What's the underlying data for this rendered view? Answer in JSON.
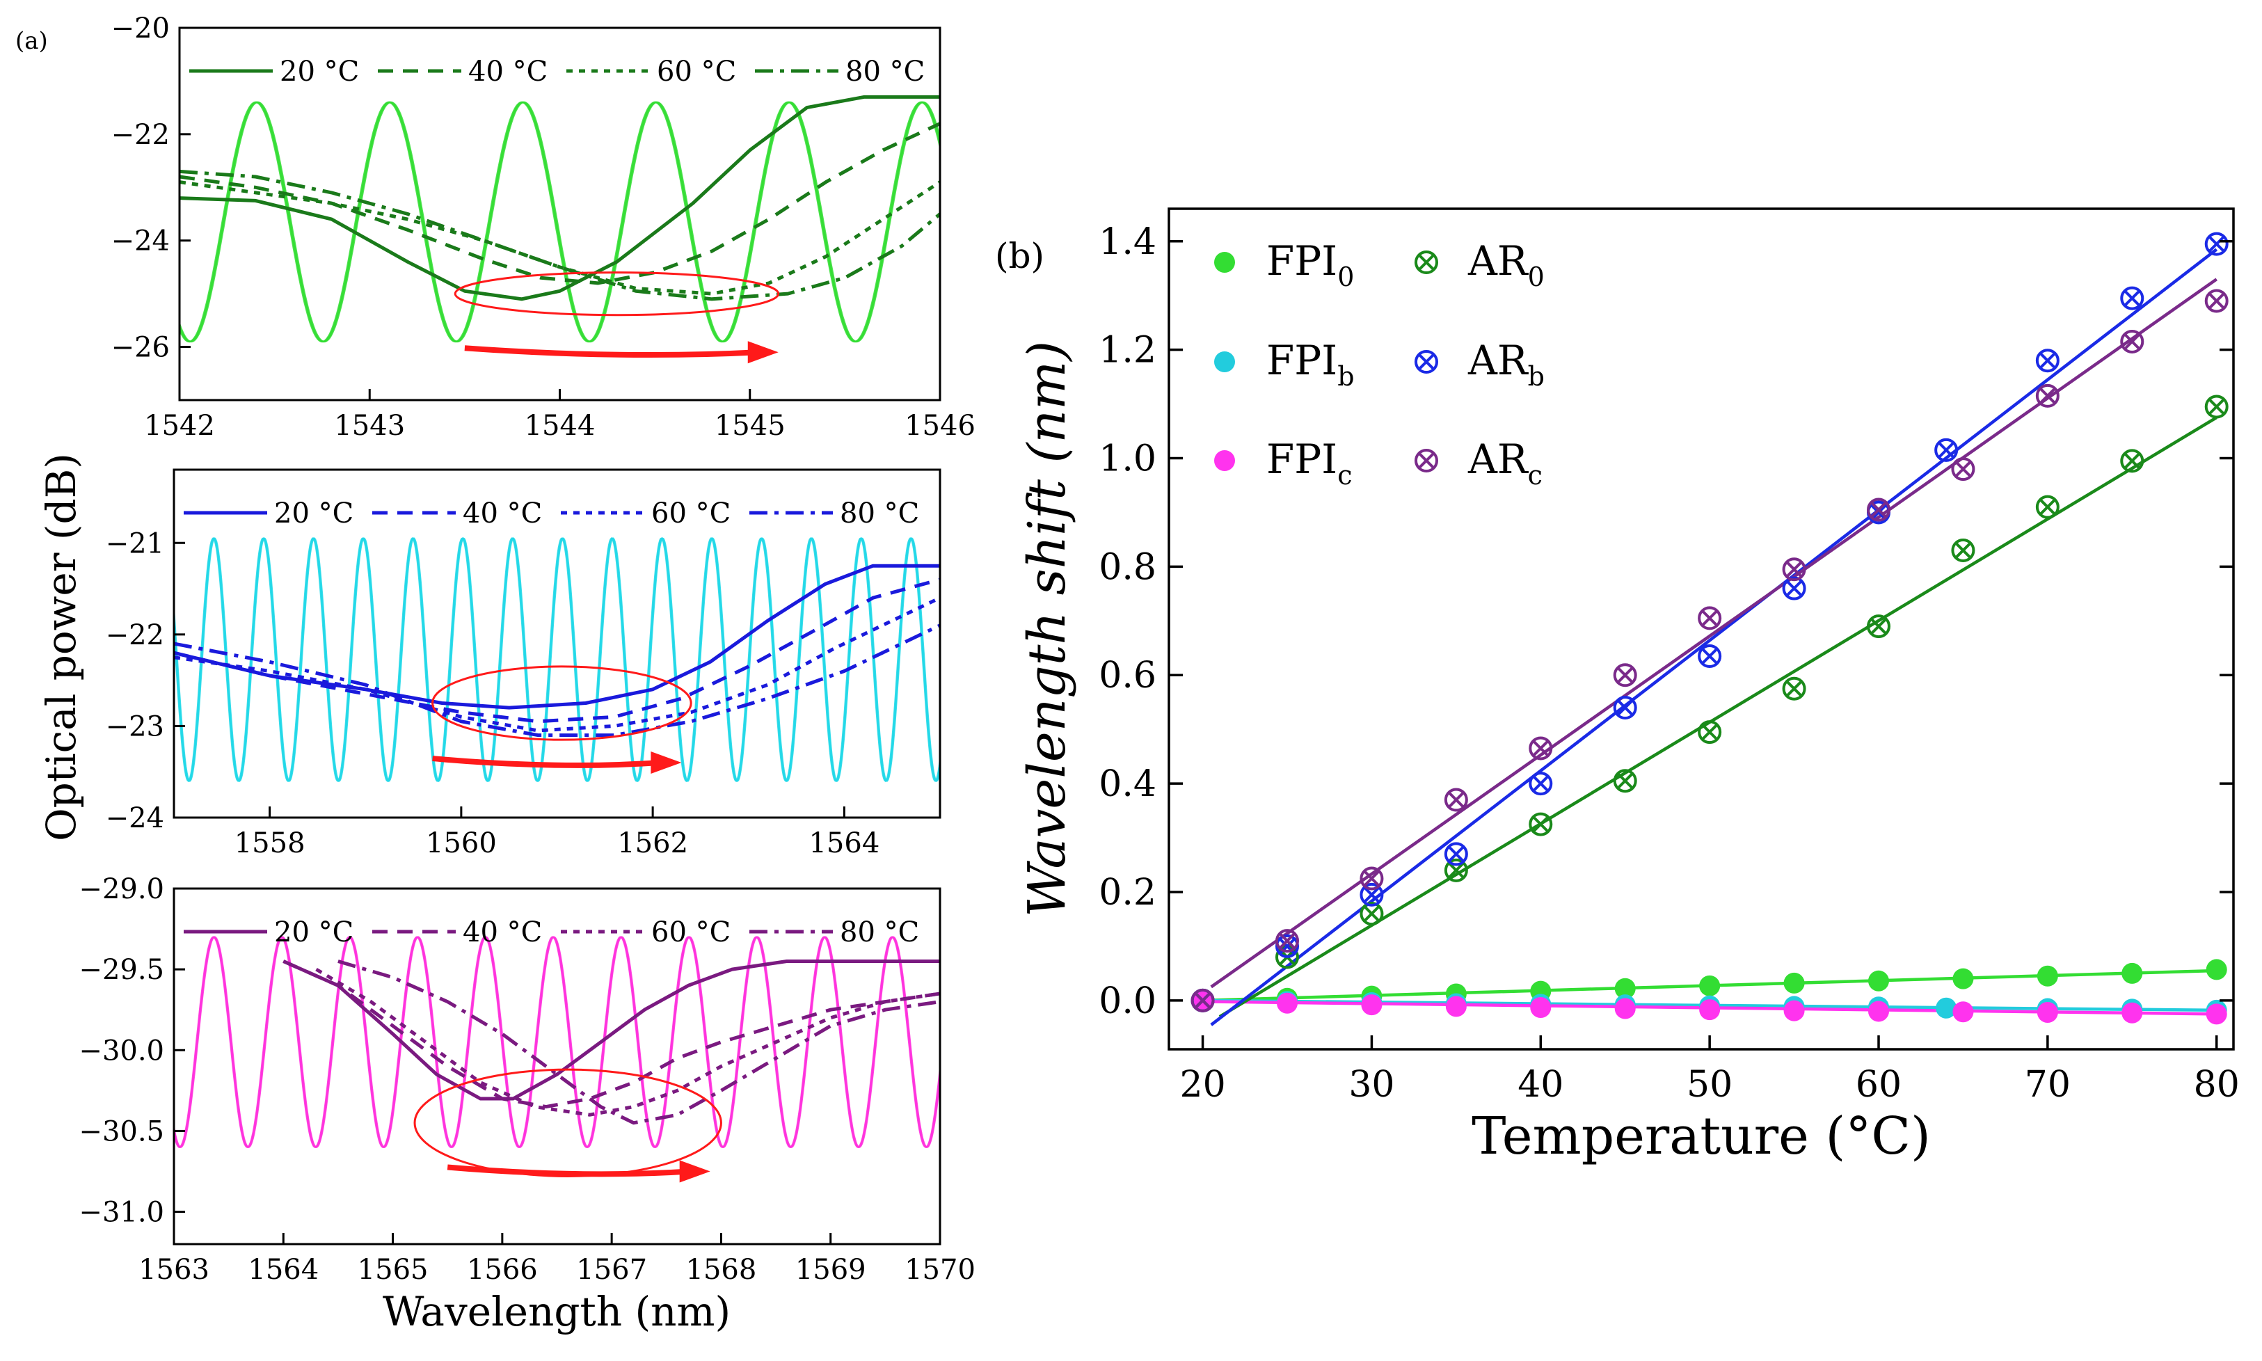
{
  "chart_data": [
    {
      "panel_label": "(a)",
      "type": "line",
      "legend": [
        "20 °C",
        "40 °C",
        "60 °C",
        "80 °C"
      ],
      "xlim": [
        1542,
        1546
      ],
      "ylim": [
        -27,
        -20
      ],
      "xticks": [
        1542,
        1543,
        1544,
        1545,
        1546
      ],
      "yticks": [
        -20,
        -22,
        -24,
        -26
      ],
      "colors": {
        "fpi": "#33dd33",
        "ar": "#1a7a1a"
      },
      "fpi": {
        "period": 0.7,
        "phase": 1542.05,
        "max": -21.4,
        "min": -25.9,
        "shift_per_step": 0.004
      },
      "ar_series": [
        {
          "name": "20 °C",
          "x": [
            1542,
            1542.4,
            1542.8,
            1543.2,
            1543.5,
            1543.8,
            1544.0,
            1544.3,
            1544.7,
            1545.0,
            1545.3,
            1545.6,
            1546
          ],
          "y": [
            -23.2,
            -23.25,
            -23.6,
            -24.4,
            -24.95,
            -25.1,
            -24.95,
            -24.4,
            -23.3,
            -22.3,
            -21.5,
            -21.3,
            -21.3
          ]
        },
        {
          "name": "40 °C",
          "x": [
            1542,
            1542.4,
            1542.8,
            1543.2,
            1543.6,
            1543.9,
            1544.2,
            1544.5,
            1544.8,
            1545.1,
            1545.4,
            1545.7,
            1546
          ],
          "y": [
            -22.8,
            -23.0,
            -23.3,
            -23.8,
            -24.35,
            -24.7,
            -24.8,
            -24.6,
            -24.2,
            -23.6,
            -22.9,
            -22.3,
            -21.8
          ]
        },
        {
          "name": "60 °C",
          "x": [
            1542,
            1542.4,
            1542.8,
            1543.2,
            1543.6,
            1544.0,
            1544.4,
            1544.8,
            1545.1,
            1545.4,
            1545.7,
            1546
          ],
          "y": [
            -22.9,
            -23.1,
            -23.3,
            -23.6,
            -24.0,
            -24.5,
            -24.9,
            -25.0,
            -24.8,
            -24.3,
            -23.6,
            -22.9
          ]
        },
        {
          "name": "80 °C",
          "x": [
            1542,
            1542.4,
            1542.8,
            1543.2,
            1543.6,
            1544.0,
            1544.4,
            1544.8,
            1545.2,
            1545.5,
            1545.8,
            1546
          ],
          "y": [
            -22.7,
            -22.8,
            -23.1,
            -23.5,
            -24.0,
            -24.5,
            -24.95,
            -25.1,
            -25.0,
            -24.7,
            -24.1,
            -23.5
          ]
        }
      ],
      "highlight_ellipse": {
        "x": 1544.3,
        "y": -25.0,
        "rx": 0.85,
        "ry": 0.4
      },
      "arrow": {
        "x1": 1543.5,
        "x2": 1545.15,
        "y": -26.1
      }
    },
    {
      "type": "line",
      "legend": [
        "20 °C",
        "40 °C",
        "60 °C",
        "80 °C"
      ],
      "ylabel": "Optical power (dB)",
      "xlim": [
        1557,
        1565
      ],
      "ylim": [
        -24,
        -20.2
      ],
      "xticks": [
        1558,
        1560,
        1562,
        1564
      ],
      "yticks": [
        -21,
        -22,
        -23,
        -24
      ],
      "colors": {
        "fpi": "#22d8e8",
        "ar": "#1a1adc"
      },
      "fpi": {
        "period": 0.52,
        "phase": 1557.15,
        "max": -20.95,
        "min": -23.6,
        "shift_per_step": 0.005
      },
      "ar_series": [
        {
          "name": "20 °C",
          "x": [
            1557,
            1558,
            1559,
            1559.8,
            1560.5,
            1561.3,
            1562.0,
            1562.6,
            1563.2,
            1563.8,
            1564.3,
            1565
          ],
          "y": [
            -22.2,
            -22.45,
            -22.6,
            -22.75,
            -22.8,
            -22.75,
            -22.6,
            -22.3,
            -21.85,
            -21.45,
            -21.25,
            -21.25
          ]
        },
        {
          "name": "40 °C",
          "x": [
            1557,
            1558,
            1559,
            1560,
            1560.8,
            1561.6,
            1562.3,
            1563.0,
            1563.7,
            1564.3,
            1565
          ],
          "y": [
            -22.2,
            -22.45,
            -22.65,
            -22.85,
            -22.95,
            -22.9,
            -22.7,
            -22.35,
            -21.95,
            -21.6,
            -21.4
          ]
        },
        {
          "name": "60 °C",
          "x": [
            1557,
            1558,
            1559,
            1560,
            1560.8,
            1561.6,
            1562.4,
            1563.2,
            1563.9,
            1564.5,
            1565
          ],
          "y": [
            -22.25,
            -22.4,
            -22.6,
            -22.9,
            -23.05,
            -23.0,
            -22.85,
            -22.55,
            -22.15,
            -21.85,
            -21.6
          ]
        },
        {
          "name": "80 °C",
          "x": [
            1557,
            1558,
            1559,
            1560,
            1560.8,
            1561.6,
            1562.4,
            1563.2,
            1564.0,
            1564.6,
            1565
          ],
          "y": [
            -22.1,
            -22.3,
            -22.55,
            -22.95,
            -23.1,
            -23.1,
            -22.95,
            -22.7,
            -22.4,
            -22.1,
            -21.9
          ]
        }
      ],
      "highlight_ellipse": {
        "x": 1561.05,
        "y": -22.75,
        "rx": 1.35,
        "ry": 0.4
      },
      "arrow": {
        "x1": 1559.7,
        "x2": 1562.3,
        "y": -23.4
      }
    },
    {
      "type": "line",
      "legend": [
        "20 °C",
        "40 °C",
        "60 °C",
        "80 °C"
      ],
      "xlabel": "Wavelength (nm)",
      "xlim": [
        1563,
        1570
      ],
      "ylim": [
        -31.2,
        -29.0
      ],
      "xticks": [
        1563,
        1564,
        1565,
        1566,
        1567,
        1568,
        1569,
        1570
      ],
      "yticks": [
        -29.0,
        -29.5,
        -30.0,
        -30.5,
        -31.0
      ],
      "ytick_labels": [
        "−29.0",
        "−29.5",
        "−30.0",
        "−30.5",
        "−31.0"
      ],
      "colors": {
        "fpi": "#ff33dd",
        "ar": "#7a1a80"
      },
      "fpi": {
        "period": 0.62,
        "phase": 1563.05,
        "max": -29.3,
        "min": -30.6,
        "shift_per_step": 0.004
      },
      "ar_series": [
        {
          "name": "20 °C",
          "x": [
            1564,
            1564.5,
            1565,
            1565.4,
            1565.8,
            1566.1,
            1566.5,
            1566.9,
            1567.3,
            1567.7,
            1568.1,
            1568.6,
            1569,
            1569.5,
            1570
          ],
          "y": [
            -29.45,
            -29.6,
            -29.9,
            -30.15,
            -30.3,
            -30.3,
            -30.15,
            -29.95,
            -29.75,
            -29.6,
            -29.5,
            -29.45,
            -29.45,
            -29.45,
            -29.45
          ]
        },
        {
          "name": "40 °C",
          "x": [
            1564,
            1564.5,
            1565,
            1565.5,
            1566,
            1566.4,
            1566.8,
            1567.2,
            1567.6,
            1568.0,
            1568.5,
            1569,
            1569.5,
            1570
          ],
          "y": [
            -29.45,
            -29.6,
            -29.85,
            -30.1,
            -30.3,
            -30.35,
            -30.3,
            -30.2,
            -30.05,
            -29.95,
            -29.85,
            -29.75,
            -29.7,
            -29.65
          ]
        },
        {
          "name": "60 °C",
          "x": [
            1564.3,
            1564.8,
            1565.3,
            1565.8,
            1566.3,
            1566.8,
            1567.2,
            1567.6,
            1568.0,
            1568.5,
            1569,
            1569.5,
            1570
          ],
          "y": [
            -29.5,
            -29.7,
            -29.95,
            -30.2,
            -30.35,
            -30.4,
            -30.35,
            -30.25,
            -30.1,
            -29.95,
            -29.8,
            -29.7,
            -29.65
          ]
        },
        {
          "name": "80 °C",
          "x": [
            1564.5,
            1565,
            1565.5,
            1566,
            1566.5,
            1566.9,
            1567.2,
            1567.6,
            1568.0,
            1568.5,
            1569,
            1569.5,
            1570
          ],
          "y": [
            -29.45,
            -29.55,
            -29.7,
            -29.9,
            -30.15,
            -30.35,
            -30.45,
            -30.4,
            -30.25,
            -30.05,
            -29.85,
            -29.75,
            -29.7
          ]
        }
      ],
      "highlight_ellipse": {
        "x": 1566.6,
        "y": -30.45,
        "rx": 1.4,
        "ry": 0.33
      },
      "arrow": {
        "x1": 1565.5,
        "x2": 1567.9,
        "y": -30.75
      }
    },
    {
      "panel_label": "(b)",
      "type": "scatter",
      "xlabel": "Temperature (°C)",
      "ylabel": "Wavelength shift (nm)",
      "xlim": [
        18,
        81
      ],
      "ylim": [
        -0.09,
        1.46
      ],
      "xticks": [
        20,
        30,
        40,
        50,
        60,
        70,
        80
      ],
      "yticks": [
        0.0,
        0.2,
        0.4,
        0.6,
        0.8,
        1.0,
        1.2,
        1.4
      ],
      "ytick_labels": [
        "0.0",
        "0.2",
        "0.4",
        "0.6",
        "0.8",
        "1.0",
        "1.2",
        "1.4"
      ],
      "legend_items": [
        {
          "base": "FPI",
          "sub": "0",
          "color": "#33dd33",
          "marker": "dot"
        },
        {
          "base": "AR",
          "sub": "0",
          "color": "#1a8a1a",
          "marker": "cross"
        },
        {
          "base": "FPI",
          "sub": "b",
          "color": "#22ccdd",
          "marker": "dot"
        },
        {
          "base": "AR",
          "sub": "b",
          "color": "#1a2ae6",
          "marker": "cross"
        },
        {
          "base": "FPI",
          "sub": "c",
          "color": "#ff33ee",
          "marker": "dot"
        },
        {
          "base": "AR",
          "sub": "c",
          "color": "#7a2a8a",
          "marker": "cross"
        }
      ],
      "series": [
        {
          "name": "FPI0",
          "color": "#33dd33",
          "marker": "dot",
          "x": [
            20,
            25,
            30,
            35,
            40,
            45,
            50,
            55,
            60,
            65,
            70,
            75,
            80
          ],
          "y": [
            0.0,
            0.004,
            0.008,
            0.012,
            0.017,
            0.022,
            0.027,
            0.032,
            0.036,
            0.04,
            0.045,
            0.05,
            0.057
          ],
          "fit": [
            [
              20,
              0.0
            ],
            [
              80,
              0.055
            ]
          ]
        },
        {
          "name": "FPIb",
          "color": "#22ccdd",
          "marker": "dot",
          "x": [
            20,
            25,
            30,
            35,
            40,
            45,
            50,
            55,
            60,
            64,
            70,
            75,
            80
          ],
          "y": [
            0.0,
            -0.002,
            -0.004,
            -0.006,
            -0.007,
            -0.008,
            -0.01,
            -0.011,
            -0.012,
            -0.014,
            -0.015,
            -0.016,
            -0.018
          ],
          "fit": [
            [
              20,
              0.0
            ],
            [
              80,
              -0.018
            ]
          ]
        },
        {
          "name": "FPIc",
          "color": "#ff33ee",
          "marker": "dot",
          "x": [
            20,
            25,
            30,
            35,
            40,
            45,
            50,
            55,
            60,
            65,
            70,
            75,
            80
          ],
          "y": [
            0.0,
            -0.005,
            -0.008,
            -0.011,
            -0.013,
            -0.015,
            -0.017,
            -0.019,
            -0.02,
            -0.021,
            -0.022,
            -0.023,
            -0.025
          ],
          "fit": [
            [
              20,
              -0.002
            ],
            [
              80,
              -0.025
            ]
          ]
        },
        {
          "name": "AR0",
          "color": "#1a8a1a",
          "marker": "cross",
          "x": [
            20,
            25,
            30,
            35,
            40,
            45,
            50,
            55,
            60,
            65,
            70,
            75,
            80
          ],
          "y": [
            0.0,
            0.08,
            0.16,
            0.24,
            0.325,
            0.405,
            0.495,
            0.575,
            0.69,
            0.83,
            0.91,
            0.995,
            1.095
          ],
          "fit": [
            [
              21,
              -0.03
            ],
            [
              80,
              1.075
            ]
          ]
        },
        {
          "name": "ARb",
          "color": "#1a2ae6",
          "marker": "cross",
          "x": [
            20,
            25,
            30,
            35,
            40,
            45,
            50,
            55,
            60,
            64,
            70,
            75,
            80
          ],
          "y": [
            0.0,
            0.1,
            0.195,
            0.27,
            0.4,
            0.54,
            0.635,
            0.76,
            0.9,
            1.015,
            1.18,
            1.295,
            1.395
          ],
          "fit": [
            [
              20.5,
              -0.045
            ],
            [
              80,
              1.385
            ]
          ]
        },
        {
          "name": "ARc",
          "color": "#7a2a8a",
          "marker": "cross",
          "x": [
            20,
            25,
            30,
            35,
            40,
            45,
            50,
            55,
            60,
            65,
            70,
            75,
            80
          ],
          "y": [
            0.0,
            0.11,
            0.225,
            0.37,
            0.465,
            0.6,
            0.705,
            0.795,
            0.905,
            0.98,
            1.115,
            1.215,
            1.29
          ],
          "fit": [
            [
              20.5,
              0.025
            ],
            [
              80,
              1.33
            ]
          ]
        }
      ]
    }
  ]
}
